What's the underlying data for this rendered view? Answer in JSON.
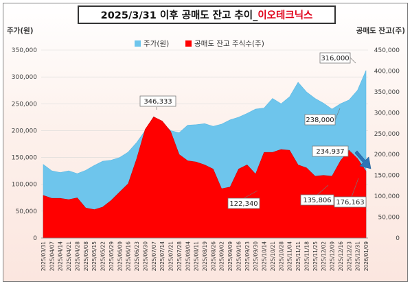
{
  "title": {
    "main": "2025/3/31 이후 공매도 잔고 추이_",
    "accent": "이오테크닉스"
  },
  "chart_data": {
    "type": "area",
    "y_left_label": "주가(원)",
    "y_right_label": "공매도 잔고(주)",
    "y_left_ticks": [
      "0",
      "50,000",
      "100,000",
      "150,000",
      "200,000",
      "250,000",
      "300,000",
      "350,000"
    ],
    "y_right_ticks": [
      "0",
      "50,000",
      "100,000",
      "150,000",
      "200,000",
      "250,000",
      "300,000",
      "350,000",
      "400,000",
      "450,000"
    ],
    "y_left_range": [
      0,
      350000
    ],
    "y_right_range": [
      0,
      450000
    ],
    "legend": [
      {
        "label": "주가(원)",
        "color": "#6ec5ec"
      },
      {
        "label": "공매도 잔고 주식수(주)",
        "color": "#ff0000"
      }
    ],
    "x_labels": [
      "2025/03/31",
      "2025/04/07",
      "2025/04/14",
      "2025/04/21",
      "2025/04/28",
      "2025/05/08",
      "2025/05/15",
      "2025/05/22",
      "2025/05/29",
      "2025/06/09",
      "2025/06/16",
      "2025/06/23",
      "2025/06/30",
      "2025/07/07",
      "2025/07/14",
      "2025/07/21",
      "2025/07/28",
      "2025/08/04",
      "2025/08/11",
      "2025/08/19",
      "2025/08/26",
      "2025/09/02",
      "2025/09/09",
      "2025/09/16",
      "2025/09/23",
      "2025/09/30",
      "2025/10/14",
      "2025/10/21",
      "2025/10/28",
      "2025/11/04",
      "2025/11/11",
      "2025/11/18",
      "2025/11/25",
      "2025/12/02",
      "2025/12/09",
      "2025/12/16",
      "2025/12/23",
      "2025/12/31",
      "2026/01/09"
    ],
    "series": [
      {
        "name": "주가(원)",
        "axis": "left",
        "values": [
          137000,
          125000,
          122000,
          125000,
          120000,
          126000,
          135000,
          143000,
          145000,
          150000,
          160000,
          178000,
          200000,
          226000,
          215000,
          200000,
          196000,
          210000,
          211000,
          213000,
          208000,
          212000,
          220000,
          225000,
          232000,
          240000,
          242000,
          260000,
          250000,
          263000,
          290000,
          272000,
          260000,
          251000,
          240000,
          250000,
          257000,
          275000,
          312000
        ]
      },
      {
        "name": "공매도 잔고 주식수(주)",
        "axis": "right",
        "values": [
          102000,
          95000,
          95000,
          92000,
          96000,
          72000,
          68000,
          74000,
          90000,
          110000,
          130000,
          190000,
          260000,
          290000,
          280000,
          255000,
          200000,
          185000,
          182000,
          175000,
          165000,
          118000,
          122000,
          165000,
          175000,
          153000,
          205000,
          205000,
          212000,
          210000,
          175000,
          168000,
          148000,
          150000,
          148000,
          185000,
          210000,
          190000,
          160000
        ]
      }
    ],
    "annotations": [
      "346,333",
      "316,000",
      "238,000",
      "234,937",
      "122,340",
      "135,806",
      "176,163"
    ]
  }
}
